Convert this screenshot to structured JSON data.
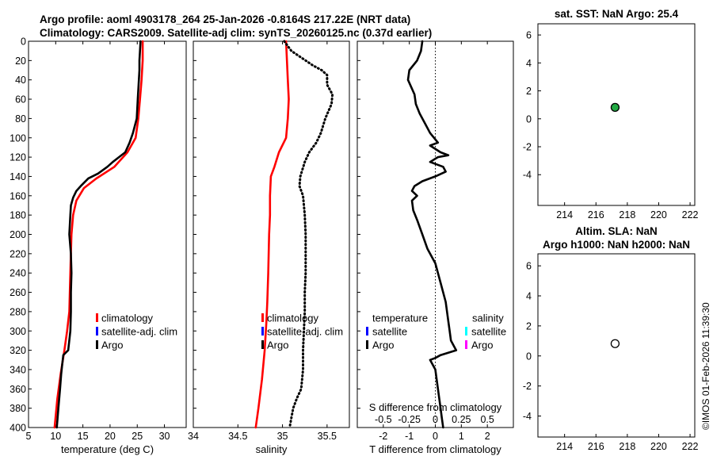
{
  "header": {
    "title_line1": "Argo profile: aoml 4903178_264 25-Jan-2026 -0.8164S 217.22E (NRT data)",
    "title_line2": "Climatology: CARS2009. Satellite-adj clim: synTS_20260125.nc (0.37d earlier)"
  },
  "watermark": "©IMOS 01-Feb-2026 11:39:30",
  "colors": {
    "climatology": "#ff0000",
    "satellite": "#0000ff",
    "argo": "#000000",
    "salinity_satellite": "#00ffff",
    "salinity_argo": "#ff00ff",
    "argo_marker": "#22aa44"
  },
  "chart_data": [
    {
      "id": "temperature",
      "type": "line",
      "xlabel": "temperature (deg C)",
      "ylabel": "",
      "xlim": [
        5,
        34
      ],
      "ylim": [
        0,
        400
      ],
      "y_inverted": true,
      "xticks": [
        5,
        10,
        15,
        20,
        25,
        30
      ],
      "yticks": [
        0,
        20,
        40,
        60,
        80,
        100,
        120,
        140,
        160,
        180,
        200,
        220,
        240,
        260,
        280,
        300,
        320,
        340,
        360,
        380,
        400
      ],
      "legend": {
        "placement": "right-middle",
        "entries": [
          "climatology",
          "satellite-adj. clim",
          "Argo"
        ]
      },
      "series": [
        {
          "name": "climatology",
          "style": "solid",
          "color": "#ff0000",
          "points": [
            [
              26.0,
              0
            ],
            [
              26.0,
              20
            ],
            [
              25.8,
              40
            ],
            [
              25.5,
              60
            ],
            [
              25.2,
              80
            ],
            [
              24.7,
              100
            ],
            [
              23.2,
              115
            ],
            [
              20.8,
              130
            ],
            [
              17.5,
              142
            ],
            [
              15.2,
              152
            ],
            [
              13.8,
              165
            ],
            [
              13.2,
              180
            ],
            [
              12.9,
              200
            ],
            [
              12.7,
              240
            ],
            [
              12.5,
              280
            ],
            [
              12.1,
              300
            ],
            [
              11.6,
              320
            ],
            [
              10.9,
              345
            ],
            [
              10.3,
              370
            ],
            [
              9.8,
              400
            ]
          ]
        },
        {
          "name": "Argo",
          "style": "solid",
          "color": "#000000",
          "points": [
            [
              25.6,
              0
            ],
            [
              25.5,
              10
            ],
            [
              25.4,
              20
            ],
            [
              25.4,
              30
            ],
            [
              25.3,
              40
            ],
            [
              25.1,
              60
            ],
            [
              24.9,
              80
            ],
            [
              24.2,
              95
            ],
            [
              23.6,
              105
            ],
            [
              22.8,
              115
            ],
            [
              20.5,
              125
            ],
            [
              19.5,
              130
            ],
            [
              17.8,
              137
            ],
            [
              16.0,
              142
            ],
            [
              14.6,
              150
            ],
            [
              13.8,
              155
            ],
            [
              13.2,
              162
            ],
            [
              12.8,
              170
            ],
            [
              12.7,
              180
            ],
            [
              12.5,
              200
            ],
            [
              12.8,
              220
            ],
            [
              12.9,
              240
            ],
            [
              12.8,
              260
            ],
            [
              12.8,
              280
            ],
            [
              12.7,
              300
            ],
            [
              12.3,
              320
            ],
            [
              11.4,
              325
            ],
            [
              11.2,
              335
            ],
            [
              11.0,
              345
            ],
            [
              10.8,
              360
            ],
            [
              10.5,
              380
            ],
            [
              10.2,
              400
            ]
          ]
        }
      ]
    },
    {
      "id": "salinity",
      "type": "line",
      "xlabel": "salinity",
      "ylabel": "",
      "xlim": [
        34,
        35.75
      ],
      "ylim": [
        0,
        400
      ],
      "y_inverted": true,
      "xticks": [
        34,
        34.5,
        35,
        35.5
      ],
      "legend": {
        "placement": "right-middle",
        "entries": [
          "climatology",
          "satellite-adj. clim",
          "Argo"
        ]
      },
      "series": [
        {
          "name": "climatology",
          "style": "solid",
          "color": "#ff0000",
          "points": [
            [
              35.04,
              0
            ],
            [
              35.05,
              20
            ],
            [
              35.06,
              40
            ],
            [
              35.07,
              60
            ],
            [
              35.06,
              80
            ],
            [
              35.04,
              100
            ],
            [
              34.96,
              115
            ],
            [
              34.91,
              130
            ],
            [
              34.87,
              140
            ],
            [
              34.86,
              160
            ],
            [
              34.86,
              180
            ],
            [
              34.85,
              200
            ],
            [
              34.84,
              240
            ],
            [
              34.83,
              270
            ],
            [
              34.82,
              290
            ],
            [
              34.8,
              320
            ],
            [
              34.77,
              350
            ],
            [
              34.73,
              380
            ],
            [
              34.7,
              400
            ]
          ]
        },
        {
          "name": "Argo",
          "style": "dotted",
          "color": "#000000",
          "points": [
            [
              35.02,
              0
            ],
            [
              35.06,
              5
            ],
            [
              35.1,
              10
            ],
            [
              35.18,
              15
            ],
            [
              35.26,
              20
            ],
            [
              35.34,
              25
            ],
            [
              35.44,
              30
            ],
            [
              35.5,
              35
            ],
            [
              35.5,
              45
            ],
            [
              35.56,
              55
            ],
            [
              35.55,
              65
            ],
            [
              35.48,
              80
            ],
            [
              35.43,
              95
            ],
            [
              35.38,
              105
            ],
            [
              35.3,
              115
            ],
            [
              35.25,
              125
            ],
            [
              35.2,
              140
            ],
            [
              35.19,
              150
            ],
            [
              35.23,
              160
            ],
            [
              35.25,
              180
            ],
            [
              35.26,
              200
            ],
            [
              35.26,
              220
            ],
            [
              35.26,
              240
            ],
            [
              35.25,
              260
            ],
            [
              35.25,
              280
            ],
            [
              35.24,
              300
            ],
            [
              35.23,
              320
            ],
            [
              35.23,
              340
            ],
            [
              35.21,
              360
            ],
            [
              35.16,
              370
            ],
            [
              35.12,
              380
            ],
            [
              35.1,
              390
            ],
            [
              35.08,
              400
            ]
          ]
        }
      ]
    },
    {
      "id": "difference",
      "type": "line",
      "xlabel": "T difference from climatology",
      "xlabel_top": "S difference from climatology",
      "ylabel": "",
      "xlim": [
        -3,
        3
      ],
      "ylim": [
        0,
        400
      ],
      "y_inverted": true,
      "xticks": [
        -2,
        -1,
        0,
        1,
        2
      ],
      "xticks_top": [
        -0.5,
        -0.25,
        0,
        0.25,
        0.5
      ],
      "zero_line": "dotted",
      "legend": {
        "placement": "right-middle",
        "entries_left": [
          "temperature",
          "satellite",
          "Argo"
        ],
        "entries_right": [
          "salinity",
          "satellite",
          "Argo"
        ]
      },
      "series": [
        {
          "name": "T difference (Argo)",
          "style": "solid",
          "color": "#000000",
          "points": [
            [
              -0.5,
              0
            ],
            [
              -0.55,
              10
            ],
            [
              -0.7,
              20
            ],
            [
              -1.0,
              30
            ],
            [
              -1.05,
              40
            ],
            [
              -0.8,
              55
            ],
            [
              -0.75,
              65
            ],
            [
              -0.6,
              75
            ],
            [
              -0.4,
              85
            ],
            [
              -0.2,
              95
            ],
            [
              0.1,
              105
            ],
            [
              -0.2,
              108
            ],
            [
              0.2,
              115
            ],
            [
              0.5,
              118
            ],
            [
              0.1,
              120
            ],
            [
              -0.2,
              125
            ],
            [
              0.3,
              130
            ],
            [
              0.4,
              135
            ],
            [
              0.0,
              140
            ],
            [
              -0.5,
              145
            ],
            [
              -0.8,
              150
            ],
            [
              -0.9,
              155
            ],
            [
              -0.7,
              160
            ],
            [
              -0.9,
              165
            ],
            [
              -0.85,
              175
            ],
            [
              -0.7,
              185
            ],
            [
              -0.5,
              200
            ],
            [
              -0.3,
              215
            ],
            [
              0.0,
              230
            ],
            [
              0.2,
              250
            ],
            [
              0.4,
              270
            ],
            [
              0.5,
              290
            ],
            [
              0.55,
              300
            ],
            [
              0.6,
              310
            ],
            [
              0.8,
              320
            ],
            [
              0.2,
              325
            ],
            [
              0.0,
              328
            ],
            [
              -0.2,
              330
            ],
            [
              0.0,
              340
            ],
            [
              0.1,
              360
            ],
            [
              0.2,
              380
            ],
            [
              0.25,
              390
            ],
            [
              0.3,
              400
            ]
          ]
        }
      ]
    },
    {
      "id": "sst",
      "type": "scatter",
      "title": "sat. SST: NaN Argo: 25.4",
      "xlim": [
        212.3,
        222.3
      ],
      "ylim": [
        -6.2,
        6.8
      ],
      "xticks": [
        214,
        216,
        218,
        220,
        222
      ],
      "yticks": [
        -4,
        -2,
        0,
        2,
        4,
        6
      ],
      "points": [
        {
          "x": 217.22,
          "y": 0.82,
          "fill": "#22aa44"
        }
      ]
    },
    {
      "id": "sla",
      "type": "scatter",
      "title_line1": "Altim. SLA: NaN",
      "title_line2": "Argo h1000: NaN h2000: NaN",
      "xlim": [
        212.3,
        222.3
      ],
      "ylim": [
        -5.4,
        6.8
      ],
      "xticks": [
        214,
        216,
        218,
        220,
        222
      ],
      "yticks": [
        -4,
        -2,
        0,
        2,
        4,
        6
      ],
      "points": [
        {
          "x": 217.22,
          "y": 0.82,
          "fill": "#ffffff"
        }
      ]
    }
  ]
}
